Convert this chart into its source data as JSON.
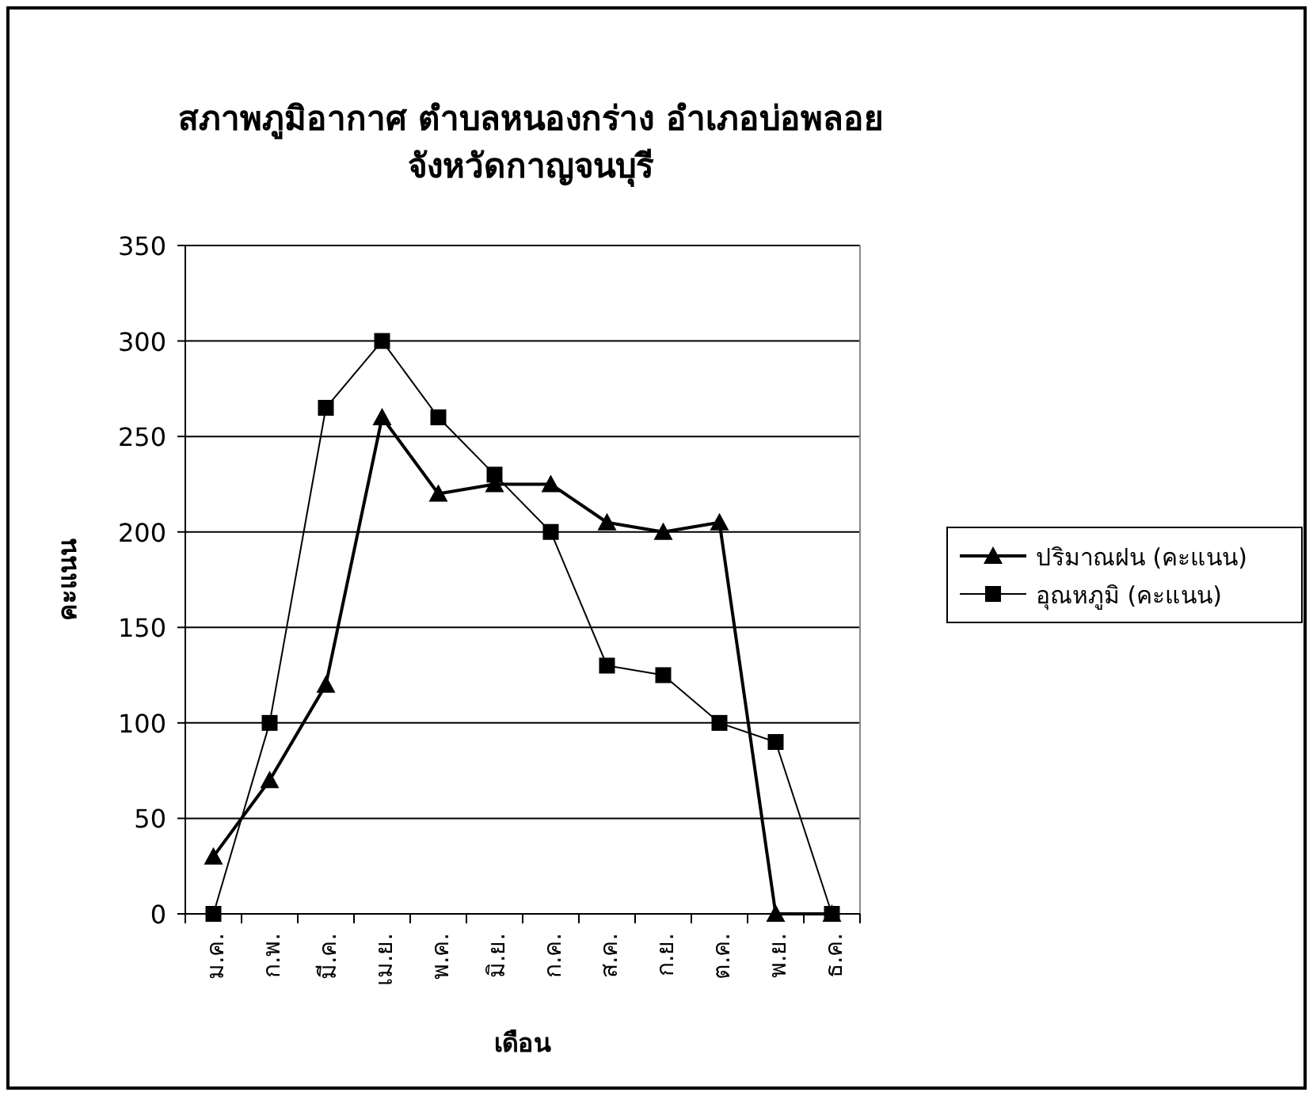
{
  "chart_data": {
    "type": "line",
    "title": "สภาพภูมิอากาศ  ตำบลหนองกร่าง  อำเภอบ่อพลอย\nจังหวัดกาญจนบุรี",
    "xlabel": "เดือน",
    "ylabel": "คะแนน",
    "categories": [
      "ม.ค.",
      "ก.พ.",
      "มี.ค.",
      "เม.ย.",
      "พ.ค.",
      "มิ.ย.",
      "ก.ค.",
      "ส.ค.",
      "ก.ย.",
      "ต.ค.",
      "พ.ย.",
      "ธ.ค."
    ],
    "series": [
      {
        "name": "ปริมาณฝน (คะแนน)",
        "color": "#000000",
        "marker": "triangle",
        "values": [
          30,
          70,
          120,
          260,
          220,
          225,
          225,
          205,
          200,
          205,
          0,
          0
        ]
      },
      {
        "name": "อุณหภูมิ (คะแนน)",
        "color": "#000000",
        "marker": "square",
        "values": [
          0,
          100,
          265,
          300,
          260,
          230,
          200,
          130,
          125,
          100,
          90,
          0
        ]
      }
    ],
    "ylim": [
      0,
      350
    ],
    "yticks": [
      0,
      50,
      100,
      150,
      200,
      250,
      300,
      350
    ],
    "grid": "y",
    "legend": "right"
  }
}
